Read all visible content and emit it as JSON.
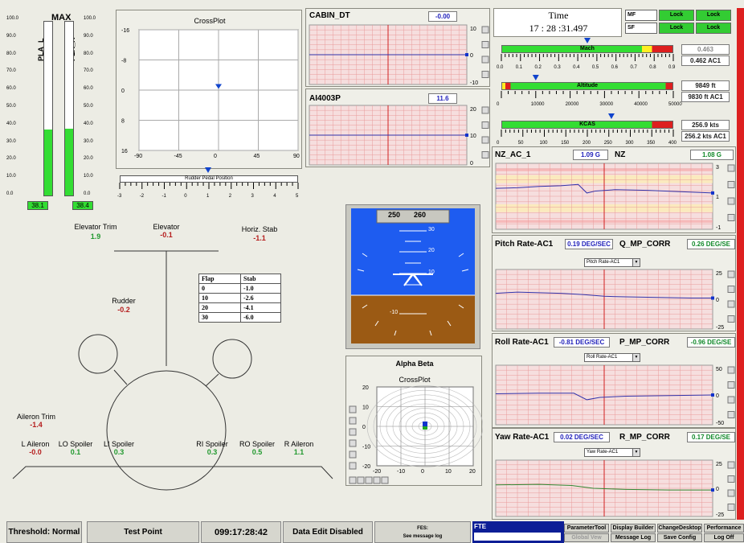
{
  "pla": {
    "title": "MAX",
    "left_label": "PLA_L",
    "right_label": "PLA_R",
    "scale": [
      "100.0",
      "90.0",
      "80.0",
      "70.0",
      "60.0",
      "50.0",
      "40.0",
      "30.0",
      "20.0",
      "10.0",
      "0.0"
    ],
    "left_value": "38.1",
    "right_value": "38.4",
    "left_fill": 38.1,
    "right_fill": 38.4
  },
  "crossplot": {
    "title": "CrossPlot",
    "y_ticks": [
      "-16",
      "-8",
      "0",
      "8",
      "16"
    ],
    "x_ticks": [
      "-90",
      "-45",
      "0",
      "45",
      "90"
    ],
    "rudder_label": "Rudder Pedal Position",
    "rudder_ticks": [
      "-3",
      "-2",
      "-1",
      "0",
      "1",
      "2",
      "3",
      "4",
      "5"
    ]
  },
  "cabin": {
    "title": "CABIN_DT",
    "value": "-0.00",
    "y_ticks": [
      "10",
      "0",
      "-10"
    ]
  },
  "ai": {
    "title": "AI4003P",
    "value": "11.6",
    "y_ticks": [
      "20",
      "10",
      "0"
    ]
  },
  "time": {
    "label": "Time",
    "value": "17 : 28 :31.497"
  },
  "lock": {
    "row1": "MF",
    "row2": "SF",
    "lock": "Lock"
  },
  "mach": {
    "label": "Mach",
    "ticks": [
      "0.0",
      "0.1",
      "0.2",
      "0.3",
      "0.4",
      "0.5",
      "0.6",
      "0.7",
      "0.8",
      "0.9"
    ],
    "val1": "0.463",
    "val2": "0.462 AC1"
  },
  "altitude": {
    "label": "Altitude",
    "ticks": [
      "0",
      "10000",
      "20000",
      "30000",
      "40000",
      "50000"
    ],
    "val1": "9849 ft",
    "val2": "9830 ft AC1"
  },
  "kcas": {
    "label": "KCAS",
    "ticks": [
      "0",
      "50",
      "100",
      "150",
      "200",
      "250",
      "300",
      "350",
      "400"
    ],
    "val1": "256.9 kts",
    "val2": "256.2 kts AC1"
  },
  "nz": {
    "title": "NZ_AC_1",
    "value": "1.09 G",
    "title2": "NZ",
    "value2": "1.08 G",
    "y_ticks": [
      "3",
      "1",
      "-1"
    ]
  },
  "pitch": {
    "title": "Pitch Rate-AC1",
    "value": "0.19 DEG/SEC",
    "title2": "Q_MP_CORR",
    "value2": "0.26 DEG/SE",
    "dropdown": "Pitch Rate-AC1",
    "y_ticks": [
      "25",
      "0",
      "-25"
    ]
  },
  "roll": {
    "title": "Roll Rate-AC1",
    "value": "-0.81 DEG/SEC",
    "title2": "P_MP_CORR",
    "value2": "-0.96 DEG/SE",
    "dropdown": "Roll Rate-AC1",
    "y_ticks": [
      "50",
      "0",
      "-50"
    ]
  },
  "yaw": {
    "title": "Yaw Rate-AC1",
    "value": "0.02 DEG/SEC",
    "title2": "R_MP_CORR",
    "value2": "0.17 DEG/SE",
    "dropdown": "Yaw Rate-AC1",
    "y_ticks": [
      "25",
      "0",
      "-25"
    ]
  },
  "surfaces": {
    "elevator_trim": {
      "label": "Elevator Trim",
      "value": "1.9"
    },
    "elevator": {
      "label": "Elevator",
      "value": "-0.1"
    },
    "horiz_stab": {
      "label": "Horiz. Stab",
      "value": "-1.1"
    },
    "rudder": {
      "label": "Rudder",
      "value": "-0.2"
    },
    "aileron_trim": {
      "label": "Aileron Trim",
      "value": "-1.4"
    },
    "l_aileron": {
      "label": "L Aileron",
      "value": "-0.0"
    },
    "lo_spoiler": {
      "label": "LO Spoiler",
      "value": "0.1"
    },
    "li_spoiler": {
      "label": "LI Spoiler",
      "value": "0.3"
    },
    "ri_spoiler": {
      "label": "RI Spoiler",
      "value": "0.3"
    },
    "ro_spoiler": {
      "label": "RO Spoiler",
      "value": "0.5"
    },
    "r_aileron": {
      "label": "R Aileron",
      "value": "1.1"
    }
  },
  "flap_table": {
    "headers": [
      "Flap",
      "Stab"
    ],
    "rows": [
      [
        "0",
        "-1.0"
      ],
      [
        "10",
        "-2.6"
      ],
      [
        "20",
        "-4.1"
      ],
      [
        "30",
        "-6.0"
      ]
    ]
  },
  "adi": {
    "heading_left": "250",
    "heading_right": "260",
    "pitch_labels": [
      "30",
      "20",
      "10",
      "-10"
    ]
  },
  "alpha_beta": {
    "title": "Alpha Beta",
    "sub": "CrossPlot",
    "y_ticks": [
      "20",
      "10",
      "0",
      "-10",
      "-20"
    ],
    "x_ticks": [
      "-20",
      "-10",
      "0",
      "10",
      "20"
    ]
  },
  "status": {
    "threshold": "Threshold: Normal",
    "test_point": "Test Point",
    "clock": "099:17:28:42",
    "data_edit": "Data Edit Disabled",
    "fes1": "FES:",
    "fes2": "See message log",
    "fte": "FTE"
  },
  "buttons": {
    "param": "ParameterTool",
    "display": "Display Builder",
    "change": "ChangeDesktop",
    "perf": "Performance",
    "global": "Global Vew",
    "msglog": "Message Log",
    "save": "Save Config",
    "logoff": "Log Off"
  },
  "colors": {
    "grid_bg": "#f6dede",
    "grid_line": "#e99a9a",
    "trace": "#3333aa",
    "bar_green": "#33dd33",
    "bar_red": "#dd1f1f"
  }
}
